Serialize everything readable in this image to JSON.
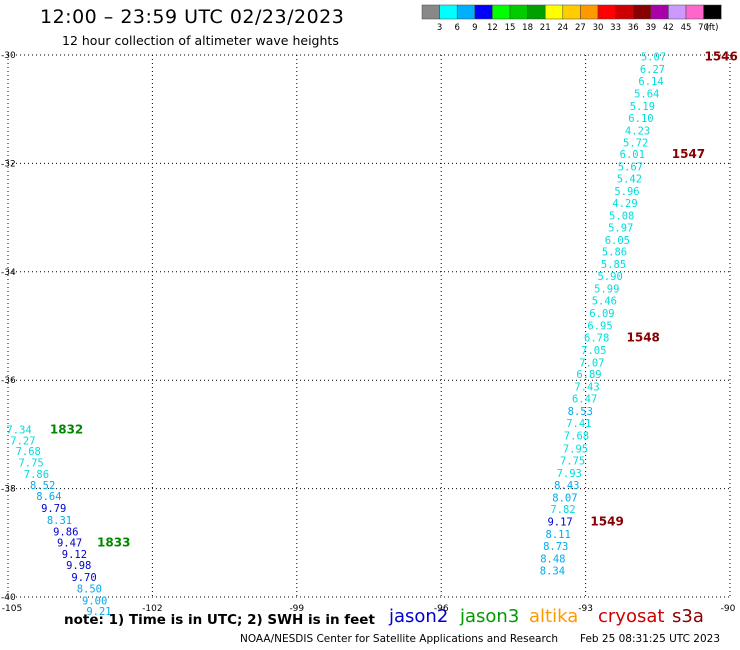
{
  "header": {
    "title": "12:00 – 23:59 UTC 02/23/2023",
    "subtitle": "12 hour collection of altimeter wave heights"
  },
  "footer": {
    "note": "note:  1) Time is in UTC;  2) SWH is in feet",
    "credit": "NOAA/NESDIS Center for Satellite Applications and Research",
    "timestamp": "Feb 25 08:31:25 UTC 2023"
  },
  "satellites": [
    {
      "name": "jason2",
      "color": "#0000cc"
    },
    {
      "name": "jason3",
      "color": "#009900"
    },
    {
      "name": "altika",
      "color": "#ff9900"
    },
    {
      "name": "cryosat",
      "color": "#cc0000"
    },
    {
      "name": "s3a",
      "color": "#880000"
    }
  ],
  "colorbar": {
    "labels": [
      "3",
      "6",
      "9",
      "12",
      "15",
      "18",
      "21",
      "24",
      "27",
      "30",
      "33",
      "36",
      "39",
      "42",
      "45",
      "70",
      "(ft)"
    ],
    "colors": [
      "#888888",
      "#00ffff",
      "#00b0ff",
      "#0000ff",
      "#00ff00",
      "#00cc00",
      "#00a000",
      "#ffff00",
      "#ffcc00",
      "#ff9900",
      "#ff0000",
      "#cc0000",
      "#880000",
      "#aa00aa",
      "#cc99ff",
      "#ff66cc",
      "#000000"
    ]
  },
  "chart_data": {
    "type": "scatter",
    "title": "12:00 – 23:59 UTC 02/23/2023",
    "subtitle": "12 hour collection of altimeter wave heights",
    "xlim": [
      -105,
      -90
    ],
    "ylim": [
      -40,
      -30
    ],
    "x_ticks": [
      {
        "value": -105,
        "label": "-105"
      },
      {
        "value": -102,
        "label": "-102"
      },
      {
        "value": -99,
        "label": "-99"
      },
      {
        "value": -96,
        "label": "-96"
      },
      {
        "value": -93,
        "label": "-93"
      },
      {
        "value": -90,
        "label": "-90"
      }
    ],
    "y_ticks": [
      {
        "value": -30,
        "label": "-30"
      },
      {
        "value": -32,
        "label": "-32"
      },
      {
        "value": -34,
        "label": "-34"
      },
      {
        "value": -36,
        "label": "-36"
      },
      {
        "value": -38,
        "label": "-38"
      },
      {
        "value": -40,
        "label": "-40"
      }
    ],
    "grid": true,
    "series": [
      {
        "points": [
          {
            "lon": -91.59,
            "lat": -30.03,
            "swh": "5.07",
            "color": "#00dddd"
          },
          {
            "lon": -91.61,
            "lat": -30.26,
            "swh": "6.27",
            "color": "#00dddd"
          },
          {
            "lon": -91.64,
            "lat": -30.48,
            "swh": "6.14",
            "color": "#00dddd"
          },
          {
            "lon": -91.73,
            "lat": -30.71,
            "swh": "5.64",
            "color": "#00dddd"
          },
          {
            "lon": -91.82,
            "lat": -30.94,
            "swh": "5.19",
            "color": "#00dddd"
          },
          {
            "lon": -91.85,
            "lat": -31.16,
            "swh": "6.10",
            "color": "#00dddd"
          },
          {
            "lon": -91.92,
            "lat": -31.39,
            "swh": "4.23",
            "color": "#00dddd"
          },
          {
            "lon": -91.96,
            "lat": -31.61,
            "swh": "5.72",
            "color": "#00dddd"
          },
          {
            "lon": -92.03,
            "lat": -31.83,
            "swh": "6.01",
            "color": "#00dddd"
          },
          {
            "lon": -92.07,
            "lat": -32.06,
            "swh": "5.67",
            "color": "#00dddd"
          },
          {
            "lon": -92.09,
            "lat": -32.28,
            "swh": "5.42",
            "color": "#00dddd"
          },
          {
            "lon": -92.14,
            "lat": -32.51,
            "swh": "5.96",
            "color": "#00dddd"
          },
          {
            "lon": -92.18,
            "lat": -32.73,
            "swh": "4.29",
            "color": "#00dddd"
          },
          {
            "lon": -92.25,
            "lat": -32.96,
            "swh": "5.08",
            "color": "#00dddd"
          },
          {
            "lon": -92.27,
            "lat": -33.18,
            "swh": "5.97",
            "color": "#00dddd"
          },
          {
            "lon": -92.34,
            "lat": -33.41,
            "swh": "6.05",
            "color": "#00dddd"
          },
          {
            "lon": -92.4,
            "lat": -33.63,
            "swh": "5.86",
            "color": "#00dddd"
          },
          {
            "lon": -92.42,
            "lat": -33.86,
            "swh": "5.85",
            "color": "#00dddd"
          },
          {
            "lon": -92.49,
            "lat": -34.08,
            "swh": "5.90",
            "color": "#00dddd"
          },
          {
            "lon": -92.56,
            "lat": -34.31,
            "swh": "5.99",
            "color": "#00dddd"
          },
          {
            "lon": -92.61,
            "lat": -34.53,
            "swh": "5.46",
            "color": "#00dddd"
          },
          {
            "lon": -92.66,
            "lat": -34.76,
            "swh": "6.09",
            "color": "#00dddd"
          },
          {
            "lon": -92.7,
            "lat": -34.99,
            "swh": "6.95",
            "color": "#00dddd"
          },
          {
            "lon": -92.77,
            "lat": -35.21,
            "swh": "6.78",
            "color": "#00dddd"
          },
          {
            "lon": -92.83,
            "lat": -35.44,
            "swh": "7.05",
            "color": "#00dddd"
          },
          {
            "lon": -92.87,
            "lat": -35.67,
            "swh": "7.07",
            "color": "#00dddd"
          },
          {
            "lon": -92.93,
            "lat": -35.89,
            "swh": "6.89",
            "color": "#00dddd"
          },
          {
            "lon": -92.97,
            "lat": -36.12,
            "swh": "7.43",
            "color": "#00dddd"
          },
          {
            "lon": -93.02,
            "lat": -36.34,
            "swh": "6.47",
            "color": "#00dddd"
          },
          {
            "lon": -93.11,
            "lat": -36.57,
            "swh": "8.53",
            "color": "#00aaee"
          },
          {
            "lon": -93.14,
            "lat": -36.79,
            "swh": "7.41",
            "color": "#00dddd"
          },
          {
            "lon": -93.19,
            "lat": -37.02,
            "swh": "7.68",
            "color": "#00dddd"
          },
          {
            "lon": -93.21,
            "lat": -37.26,
            "swh": "7.95",
            "color": "#00dddd"
          },
          {
            "lon": -93.27,
            "lat": -37.48,
            "swh": "7.75",
            "color": "#00dddd"
          },
          {
            "lon": -93.34,
            "lat": -37.71,
            "swh": "7.93",
            "color": "#00dddd"
          },
          {
            "lon": -93.39,
            "lat": -37.93,
            "swh": "8.43",
            "color": "#00aaee"
          },
          {
            "lon": -93.43,
            "lat": -38.16,
            "swh": "8.07",
            "color": "#00aaee"
          },
          {
            "lon": -93.47,
            "lat": -38.38,
            "swh": "7.82",
            "color": "#00dddd"
          },
          {
            "lon": -93.53,
            "lat": -38.61,
            "swh": "9.17",
            "color": "#0000cc"
          },
          {
            "lon": -93.57,
            "lat": -38.84,
            "swh": "8.11",
            "color": "#00aaee"
          },
          {
            "lon": -93.62,
            "lat": -39.06,
            "swh": "8.73",
            "color": "#00aaee"
          },
          {
            "lon": -93.68,
            "lat": -39.29,
            "swh": "8.48",
            "color": "#00aaee"
          },
          {
            "lon": -93.69,
            "lat": -39.51,
            "swh": "8.34",
            "color": "#00aaee"
          }
        ]
      },
      {
        "points": [
          {
            "lon": -104.77,
            "lat": -36.91,
            "swh": "7.34",
            "color": "#00dddd"
          },
          {
            "lon": -104.69,
            "lat": -37.11,
            "swh": "7.27",
            "color": "#00dddd"
          },
          {
            "lon": -104.58,
            "lat": -37.31,
            "swh": "7.68",
            "color": "#00dddd"
          },
          {
            "lon": -104.52,
            "lat": -37.52,
            "swh": "7.75",
            "color": "#00dddd"
          },
          {
            "lon": -104.41,
            "lat": -37.73,
            "swh": "7.86",
            "color": "#00dddd"
          },
          {
            "lon": -104.28,
            "lat": -37.93,
            "swh": "8.52",
            "color": "#00aaee"
          },
          {
            "lon": -104.15,
            "lat": -38.14,
            "swh": "8.64",
            "color": "#00aaee"
          },
          {
            "lon": -104.05,
            "lat": -38.36,
            "swh": "9.79",
            "color": "#0000cc"
          },
          {
            "lon": -103.93,
            "lat": -38.58,
            "swh": "8.31",
            "color": "#00aaee"
          },
          {
            "lon": -103.8,
            "lat": -38.79,
            "swh": "9.86",
            "color": "#0000cc"
          },
          {
            "lon": -103.72,
            "lat": -38.99,
            "swh": "9.47",
            "color": "#0000cc"
          },
          {
            "lon": -103.62,
            "lat": -39.21,
            "swh": "9.12",
            "color": "#0000cc"
          },
          {
            "lon": -103.53,
            "lat": -39.41,
            "swh": "9.98",
            "color": "#0000cc"
          },
          {
            "lon": -103.42,
            "lat": -39.63,
            "swh": "9.70",
            "color": "#0000cc"
          },
          {
            "lon": -103.31,
            "lat": -39.84,
            "swh": "8.50",
            "color": "#00aaee"
          },
          {
            "lon": -103.2,
            "lat": -40.06,
            "swh": "9.00",
            "color": "#00aaee"
          },
          {
            "lon": -103.11,
            "lat": -40.26,
            "swh": "9.21",
            "color": "#00aaee"
          }
        ]
      }
    ],
    "time_labels": [
      {
        "text": "1546",
        "lon": -90.53,
        "lat": -30.03,
        "color": "#880000"
      },
      {
        "text": "1547",
        "lon": -91.21,
        "lat": -31.83,
        "color": "#880000"
      },
      {
        "text": "1548",
        "lon": -92.15,
        "lat": -35.21,
        "color": "#880000"
      },
      {
        "text": "1549",
        "lon": -92.9,
        "lat": -38.61,
        "color": "#880000"
      },
      {
        "text": "1832",
        "lon": -104.13,
        "lat": -36.91,
        "color": "#008800"
      },
      {
        "text": "1833",
        "lon": -103.15,
        "lat": -38.99,
        "color": "#008800"
      }
    ]
  }
}
